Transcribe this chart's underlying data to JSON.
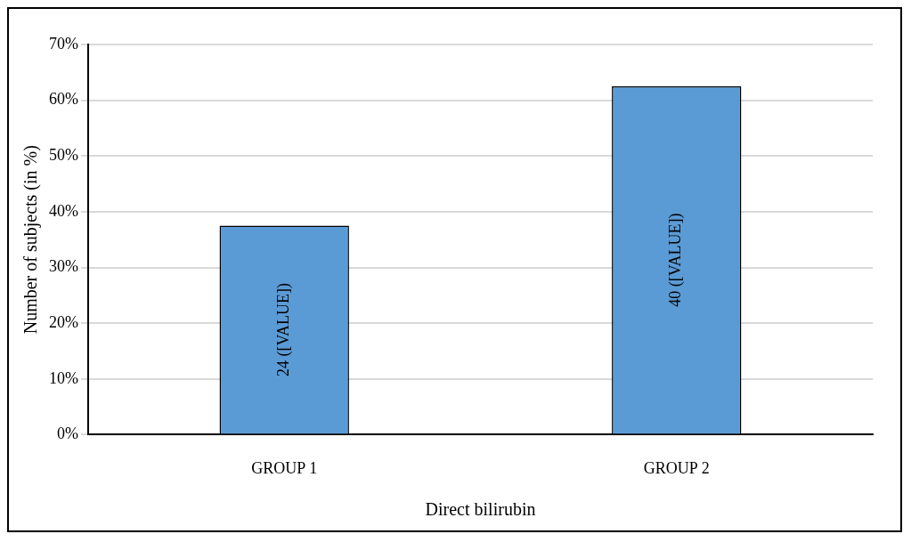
{
  "chart_data": {
    "type": "bar",
    "xlabel": "Direct bilirubin",
    "ylabel": "Number of subjects (in %)",
    "categories": [
      "GROUP 1",
      "GROUP 2"
    ],
    "values": [
      37.5,
      62.5
    ],
    "annotations": [
      "24 ([VALUE])",
      "40 ([VALUE])"
    ],
    "color": "#5b9bd5",
    "ylim": [
      0,
      70
    ],
    "yticks": [
      {
        "value": 0,
        "label": "0%"
      },
      {
        "value": 10,
        "label": "10%"
      },
      {
        "value": 20,
        "label": "20%"
      },
      {
        "value": 30,
        "label": "30%"
      },
      {
        "value": 40,
        "label": "40%"
      },
      {
        "value": 50,
        "label": "50%"
      },
      {
        "value": 60,
        "label": "60%"
      },
      {
        "value": 70,
        "label": "70%"
      }
    ],
    "grid": "y",
    "legend": false
  }
}
